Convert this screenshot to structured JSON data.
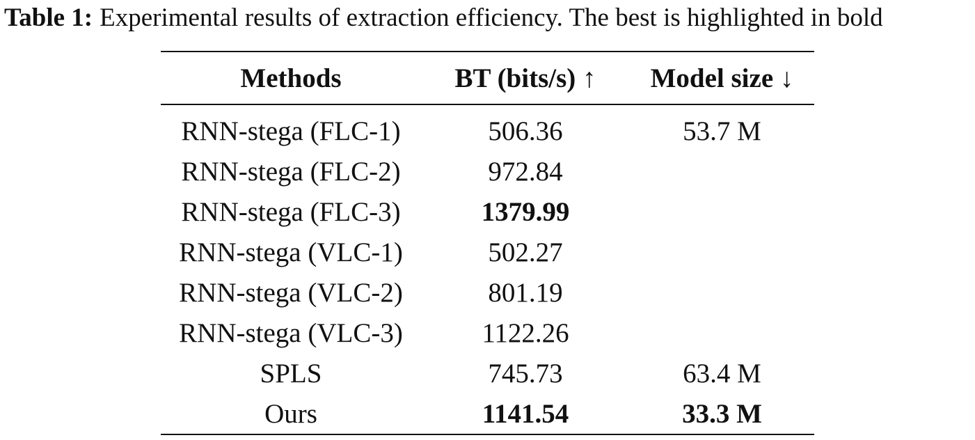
{
  "caption": {
    "label": "Table 1:",
    "text": "Experimental results of extraction efficiency. The best is highlighted in bold"
  },
  "table": {
    "headers": [
      "Methods",
      "BT (bits/s) ↑",
      "Model size ↓"
    ],
    "rows": [
      {
        "method": "RNN-stega (FLC-1)",
        "bt": "506.36",
        "size": "53.7 M"
      },
      {
        "method": "RNN-stega (FLC-2)",
        "bt": "972.84",
        "size": ""
      },
      {
        "method": "RNN-stega (FLC-3)",
        "bt": "1379.99",
        "size": ""
      },
      {
        "method": "RNN-stega (VLC-1)",
        "bt": "502.27",
        "size": ""
      },
      {
        "method": "RNN-stega (VLC-2)",
        "bt": "801.19",
        "size": ""
      },
      {
        "method": "RNN-stega (VLC-3)",
        "bt": "1122.26",
        "size": ""
      },
      {
        "method": "SPLS",
        "bt": "745.73",
        "size": "63.4 M"
      },
      {
        "method": "Ours",
        "bt": "1141.54",
        "size": "33.3 M"
      }
    ]
  }
}
